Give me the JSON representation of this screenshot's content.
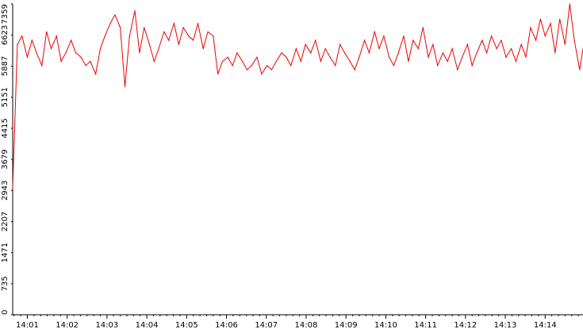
{
  "chart_data": {
    "type": "line",
    "title": "",
    "xlabel": "",
    "ylabel": "",
    "grid": false,
    "legend": "none",
    "ylim": [
      0,
      7359
    ],
    "xlim": [
      "14:00:38",
      "14:14:57"
    ],
    "y_ticks": [
      0,
      735,
      1471,
      2207,
      2943,
      3679,
      4415,
      5151,
      5887,
      6623,
      7359
    ],
    "y_tick_labels": [
      "0",
      "735",
      "1471",
      "2207",
      "2943",
      "3679",
      "4415",
      "5151",
      "5887",
      "6623",
      "7359"
    ],
    "x_ticks": [
      "14:01",
      "14:02",
      "14:03",
      "14:04",
      "14:05",
      "14:06",
      "14:07",
      "14:08",
      "14:09",
      "14:10",
      "14:11",
      "14:12",
      "14:13",
      "14:14"
    ],
    "x_tick_labels": [
      "14:01",
      "14:02",
      "14:03",
      "14:04",
      "14:05",
      "14:06",
      "14:07",
      "14:08",
      "14:09",
      "14:10",
      "14:11",
      "14:12",
      "14:13",
      "14:14"
    ],
    "series": [
      {
        "color": "#ee0000",
        "x": [
          "14:00:38",
          "14:00:45",
          "14:00:52",
          "14:01:00",
          "14:01:07",
          "14:01:14",
          "14:01:22",
          "14:01:29",
          "14:01:36",
          "14:01:44",
          "14:01:51",
          "14:01:58",
          "14:02:06",
          "14:02:13",
          "14:02:21",
          "14:02:28",
          "14:02:35",
          "14:02:43",
          "14:02:50",
          "14:02:57",
          "14:03:05",
          "14:03:12",
          "14:03:20",
          "14:03:27",
          "14:03:34",
          "14:03:42",
          "14:03:49",
          "14:03:56",
          "14:04:04",
          "14:04:11",
          "14:04:18",
          "14:04:26",
          "14:04:33",
          "14:04:41",
          "14:04:48",
          "14:04:55",
          "14:05:03",
          "14:05:10",
          "14:05:17",
          "14:05:25",
          "14:05:32",
          "14:05:40",
          "14:05:47",
          "14:05:54",
          "14:06:02",
          "14:06:09",
          "14:06:16",
          "14:06:24",
          "14:06:31",
          "14:06:38",
          "14:06:46",
          "14:06:53",
          "14:07:01",
          "14:07:08",
          "14:07:15",
          "14:07:23",
          "14:07:30",
          "14:07:37",
          "14:07:45",
          "14:07:52",
          "14:07:59",
          "14:08:07",
          "14:08:14",
          "14:08:22",
          "14:08:29",
          "14:08:36",
          "14:08:44",
          "14:08:51",
          "14:08:58",
          "14:09:06",
          "14:09:13",
          "14:09:20",
          "14:09:28",
          "14:09:35",
          "14:09:43",
          "14:09:50",
          "14:09:57",
          "14:10:05",
          "14:10:12",
          "14:10:19",
          "14:10:27",
          "14:10:34",
          "14:10:41",
          "14:10:49",
          "14:10:56",
          "14:11:04",
          "14:11:11",
          "14:11:18",
          "14:11:26",
          "14:11:33",
          "14:11:40",
          "14:11:48",
          "14:11:55",
          "14:12:03",
          "14:12:10",
          "14:12:17",
          "14:12:25",
          "14:12:32",
          "14:12:39",
          "14:12:47",
          "14:12:54",
          "14:13:01",
          "14:13:09",
          "14:13:16",
          "14:13:24",
          "14:13:31",
          "14:13:38",
          "14:13:46",
          "14:13:53",
          "14:14:00",
          "14:14:08",
          "14:14:15",
          "14:14:22",
          "14:14:30",
          "14:14:37",
          "14:14:44",
          "14:14:52",
          "14:14:57"
        ],
        "values": [
          3000,
          6400,
          6600,
          6100,
          6500,
          6200,
          5900,
          6700,
          6300,
          6600,
          6000,
          6200,
          6500,
          6200,
          6100,
          5900,
          6000,
          5700,
          6300,
          6600,
          6900,
          7100,
          6800,
          5400,
          6600,
          7200,
          6200,
          6800,
          6400,
          6000,
          6300,
          6700,
          6500,
          6900,
          6400,
          6800,
          6600,
          6500,
          6900,
          6300,
          6700,
          6600,
          5700,
          6000,
          6100,
          5900,
          6200,
          6000,
          5800,
          5900,
          6100,
          5700,
          5900,
          5800,
          6000,
          6200,
          6100,
          5900,
          6300,
          6000,
          6400,
          6200,
          6500,
          6000,
          6300,
          6100,
          5900,
          6400,
          6200,
          6000,
          5800,
          6100,
          6500,
          6200,
          6700,
          6300,
          6600,
          6100,
          5900,
          6200,
          6600,
          6000,
          6500,
          6300,
          6800,
          6100,
          6400,
          5900,
          6200,
          6000,
          6300,
          5800,
          6100,
          6400,
          5900,
          6200,
          6500,
          6200,
          6600,
          6300,
          6500,
          6100,
          6300,
          6000,
          6400,
          6100,
          6800,
          6500,
          7000,
          6600,
          6900,
          6200,
          7000,
          6400,
          7359,
          6500,
          5800,
          6300
        ]
      }
    ]
  }
}
